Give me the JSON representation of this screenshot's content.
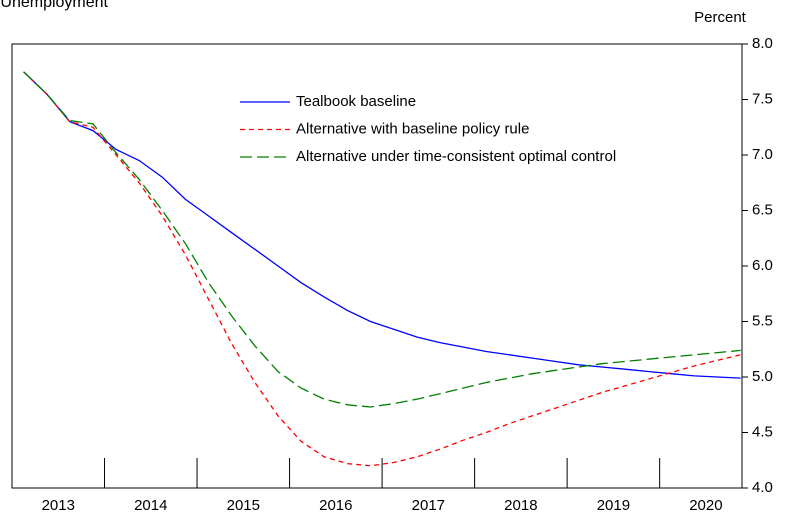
{
  "chart_data": {
    "type": "line",
    "title": "Unemployment",
    "y_unit_label": "Percent",
    "x": [
      2013.125,
      2013.375,
      2013.625,
      2013.875,
      2014.125,
      2014.375,
      2014.625,
      2014.875,
      2015.125,
      2015.375,
      2015.625,
      2015.875,
      2016.125,
      2016.375,
      2016.625,
      2016.875,
      2017.125,
      2017.375,
      2017.625,
      2017.875,
      2018.125,
      2018.375,
      2018.625,
      2018.875,
      2019.125,
      2019.375,
      2019.625,
      2019.875,
      2020.125,
      2020.375,
      2020.625,
      2020.875
    ],
    "series": [
      {
        "name": "Tealbook baseline",
        "color": "#0000ff",
        "dash": "none",
        "values": [
          7.75,
          7.55,
          7.3,
          7.22,
          7.05,
          6.95,
          6.8,
          6.6,
          6.45,
          6.3,
          6.15,
          6.0,
          5.85,
          5.72,
          5.6,
          5.5,
          5.43,
          5.36,
          5.31,
          5.27,
          5.23,
          5.2,
          5.17,
          5.14,
          5.11,
          5.09,
          5.07,
          5.05,
          5.03,
          5.01,
          5.0,
          4.99
        ]
      },
      {
        "name": "Alternative with baseline policy rule",
        "color": "#ff0000",
        "dash": "5 4",
        "values": [
          7.75,
          7.55,
          7.3,
          7.25,
          7.0,
          6.75,
          6.45,
          6.1,
          5.7,
          5.3,
          4.95,
          4.65,
          4.42,
          4.28,
          4.22,
          4.2,
          4.23,
          4.28,
          4.35,
          4.43,
          4.5,
          4.58,
          4.65,
          4.72,
          4.79,
          4.86,
          4.92,
          4.98,
          5.04,
          5.1,
          5.15,
          5.2
        ]
      },
      {
        "name": "Alternative under time-consistent optimal control",
        "color": "#008000",
        "dash": "12 5",
        "values": [
          7.75,
          7.55,
          7.31,
          7.28,
          7.02,
          6.78,
          6.5,
          6.2,
          5.85,
          5.55,
          5.28,
          5.05,
          4.9,
          4.8,
          4.75,
          4.73,
          4.76,
          4.8,
          4.85,
          4.9,
          4.95,
          4.99,
          5.03,
          5.06,
          5.09,
          5.12,
          5.14,
          5.16,
          5.18,
          5.2,
          5.22,
          5.24
        ]
      }
    ],
    "xlim": [
      2013,
      2020.89
    ],
    "xticks": [
      {
        "value": 2013.5,
        "label": "2013"
      },
      {
        "value": 2014.5,
        "label": "2014"
      },
      {
        "value": 2015.5,
        "label": "2015"
      },
      {
        "value": 2016.5,
        "label": "2016"
      },
      {
        "value": 2017.5,
        "label": "2017"
      },
      {
        "value": 2018.5,
        "label": "2018"
      },
      {
        "value": 2019.5,
        "label": "2019"
      },
      {
        "value": 2020.5,
        "label": "2020"
      }
    ],
    "xminor": [
      2014,
      2015,
      2016,
      2017,
      2018,
      2019,
      2020
    ],
    "ylim": [
      4,
      8
    ],
    "yticks": [
      {
        "value": 4,
        "label": "4.0"
      },
      {
        "value": 4.5,
        "label": "4.5"
      },
      {
        "value": 5,
        "label": "5.0"
      },
      {
        "value": 5.5,
        "label": "5.5"
      },
      {
        "value": 6,
        "label": "6.0"
      },
      {
        "value": 6.5,
        "label": "6.5"
      },
      {
        "value": 7,
        "label": "7.0"
      },
      {
        "value": 7.5,
        "label": "7.5"
      },
      {
        "value": 8,
        "label": "8.0"
      }
    ],
    "y_axis_side": "right",
    "grid": false
  }
}
